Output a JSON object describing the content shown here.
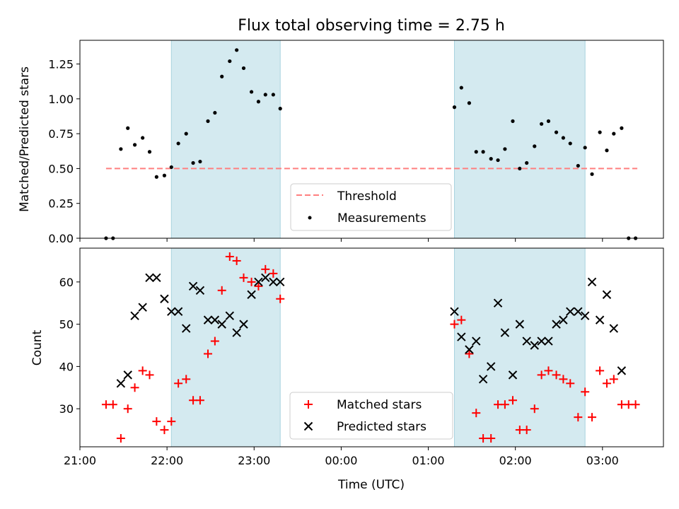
{
  "title": "Flux total observing time = 2.75 h",
  "chart_data": [
    {
      "type": "scatter",
      "panel": "top",
      "ylabel": "Matched/Predicted stars",
      "xlim": [
        21.0,
        27.7
      ],
      "ylim": [
        0,
        1.42
      ],
      "yticks": [
        0.0,
        0.25,
        0.5,
        0.75,
        1.0,
        1.25
      ],
      "ytick_labels": [
        "0.00",
        "0.25",
        "0.50",
        "0.75",
        "1.00",
        "1.25"
      ],
      "shaded_intervals": [
        [
          22.05,
          23.3
        ],
        [
          25.3,
          26.8
        ]
      ],
      "shade_color": "#d4eaf0",
      "threshold": {
        "name": "Threshold",
        "value": 0.5,
        "x_range": [
          21.3,
          27.4
        ],
        "color": "#ff7f7f",
        "style": "dashed"
      },
      "series": [
        {
          "name": "Measurements",
          "color": "#000000",
          "marker": "dot",
          "points": [
            [
              21.3,
              0.0
            ],
            [
              21.38,
              0.0
            ],
            [
              21.47,
              0.64
            ],
            [
              21.55,
              0.79
            ],
            [
              21.63,
              0.67
            ],
            [
              21.72,
              0.72
            ],
            [
              21.8,
              0.62
            ],
            [
              21.88,
              0.44
            ],
            [
              21.97,
              0.45
            ],
            [
              22.05,
              0.51
            ],
            [
              22.13,
              0.68
            ],
            [
              22.22,
              0.75
            ],
            [
              22.3,
              0.54
            ],
            [
              22.38,
              0.55
            ],
            [
              22.47,
              0.84
            ],
            [
              22.55,
              0.9
            ],
            [
              22.63,
              1.16
            ],
            [
              22.72,
              1.27
            ],
            [
              22.8,
              1.35
            ],
            [
              22.88,
              1.22
            ],
            [
              22.97,
              1.05
            ],
            [
              23.05,
              0.98
            ],
            [
              23.13,
              1.03
            ],
            [
              23.22,
              1.03
            ],
            [
              23.3,
              0.93
            ],
            [
              25.3,
              0.94
            ],
            [
              25.38,
              1.08
            ],
            [
              25.47,
              0.97
            ],
            [
              25.55,
              0.62
            ],
            [
              25.63,
              0.62
            ],
            [
              25.72,
              0.57
            ],
            [
              25.8,
              0.56
            ],
            [
              25.88,
              0.64
            ],
            [
              25.97,
              0.84
            ],
            [
              26.05,
              0.5
            ],
            [
              26.13,
              0.54
            ],
            [
              26.22,
              0.66
            ],
            [
              26.3,
              0.82
            ],
            [
              26.38,
              0.84
            ],
            [
              26.47,
              0.76
            ],
            [
              26.55,
              0.72
            ],
            [
              26.63,
              0.68
            ],
            [
              26.72,
              0.52
            ],
            [
              26.8,
              0.65
            ],
            [
              26.88,
              0.46
            ],
            [
              26.97,
              0.76
            ],
            [
              27.05,
              0.63
            ],
            [
              27.13,
              0.75
            ],
            [
              27.22,
              0.79
            ],
            [
              27.3,
              0.0
            ],
            [
              27.38,
              0.0
            ]
          ]
        }
      ],
      "legend": {
        "placement": "lower-center",
        "entries": [
          "Threshold",
          "Measurements"
        ]
      }
    },
    {
      "type": "scatter",
      "panel": "bottom",
      "xlabel": "Time (UTC)",
      "ylabel": "Count",
      "xlim": [
        21.0,
        27.7
      ],
      "ylim": [
        21,
        68
      ],
      "xticks": [
        21,
        22,
        23,
        24,
        25,
        26,
        27
      ],
      "xtick_labels": [
        "21:00",
        "22:00",
        "23:00",
        "00:00",
        "01:00",
        "02:00",
        "03:00"
      ],
      "yticks": [
        30,
        40,
        50,
        60
      ],
      "ytick_labels": [
        "30",
        "40",
        "50",
        "60"
      ],
      "shaded_intervals": [
        [
          22.05,
          23.3
        ],
        [
          25.3,
          26.8
        ]
      ],
      "shade_color": "#d4eaf0",
      "series": [
        {
          "name": "Matched stars",
          "color": "#ff0000",
          "marker": "plus",
          "points": [
            [
              21.3,
              31
            ],
            [
              21.38,
              31
            ],
            [
              21.47,
              23
            ],
            [
              21.55,
              30
            ],
            [
              21.63,
              35
            ],
            [
              21.72,
              39
            ],
            [
              21.8,
              38
            ],
            [
              21.88,
              27
            ],
            [
              21.97,
              25
            ],
            [
              22.05,
              27
            ],
            [
              22.13,
              36
            ],
            [
              22.22,
              37
            ],
            [
              22.3,
              32
            ],
            [
              22.38,
              32
            ],
            [
              22.47,
              43
            ],
            [
              22.55,
              46
            ],
            [
              22.63,
              58
            ],
            [
              22.72,
              66
            ],
            [
              22.8,
              65
            ],
            [
              22.88,
              61
            ],
            [
              22.97,
              60
            ],
            [
              23.05,
              59
            ],
            [
              23.13,
              63
            ],
            [
              23.22,
              62
            ],
            [
              23.3,
              56
            ],
            [
              25.3,
              50
            ],
            [
              25.38,
              51
            ],
            [
              25.47,
              43
            ],
            [
              25.55,
              29
            ],
            [
              25.63,
              23
            ],
            [
              25.72,
              23
            ],
            [
              25.8,
              31
            ],
            [
              25.88,
              31
            ],
            [
              25.97,
              32
            ],
            [
              26.05,
              25
            ],
            [
              26.13,
              25
            ],
            [
              26.22,
              30
            ],
            [
              26.3,
              38
            ],
            [
              26.38,
              39
            ],
            [
              26.47,
              38
            ],
            [
              26.55,
              37
            ],
            [
              26.63,
              36
            ],
            [
              26.72,
              28
            ],
            [
              26.8,
              34
            ],
            [
              26.88,
              28
            ],
            [
              26.97,
              39
            ],
            [
              27.05,
              36
            ],
            [
              27.13,
              37
            ],
            [
              27.22,
              31
            ],
            [
              27.3,
              31
            ],
            [
              27.38,
              31
            ]
          ]
        },
        {
          "name": "Predicted stars",
          "color": "#000000",
          "marker": "x",
          "points": [
            [
              21.47,
              36
            ],
            [
              21.55,
              38
            ],
            [
              21.63,
              52
            ],
            [
              21.72,
              54
            ],
            [
              21.8,
              61
            ],
            [
              21.88,
              61
            ],
            [
              21.97,
              56
            ],
            [
              22.05,
              53
            ],
            [
              22.13,
              53
            ],
            [
              22.22,
              49
            ],
            [
              22.3,
              59
            ],
            [
              22.38,
              58
            ],
            [
              22.47,
              51
            ],
            [
              22.55,
              51
            ],
            [
              22.63,
              50
            ],
            [
              22.72,
              52
            ],
            [
              22.8,
              48
            ],
            [
              22.88,
              50
            ],
            [
              22.97,
              57
            ],
            [
              23.05,
              60
            ],
            [
              23.13,
              61
            ],
            [
              23.22,
              60
            ],
            [
              23.3,
              60
            ],
            [
              25.3,
              53
            ],
            [
              25.38,
              47
            ],
            [
              25.47,
              44
            ],
            [
              25.55,
              46
            ],
            [
              25.63,
              37
            ],
            [
              25.72,
              40
            ],
            [
              25.8,
              55
            ],
            [
              25.88,
              48
            ],
            [
              25.97,
              38
            ],
            [
              26.05,
              50
            ],
            [
              26.13,
              46
            ],
            [
              26.22,
              45
            ],
            [
              26.3,
              46
            ],
            [
              26.38,
              46
            ],
            [
              26.47,
              50
            ],
            [
              26.55,
              51
            ],
            [
              26.63,
              53
            ],
            [
              26.72,
              53
            ],
            [
              26.8,
              52
            ],
            [
              26.88,
              60
            ],
            [
              26.97,
              51
            ],
            [
              27.05,
              57
            ],
            [
              27.13,
              49
            ],
            [
              27.22,
              39
            ]
          ]
        }
      ],
      "legend": {
        "placement": "lower-center",
        "entries": [
          "Matched stars",
          "Predicted stars"
        ]
      }
    }
  ]
}
